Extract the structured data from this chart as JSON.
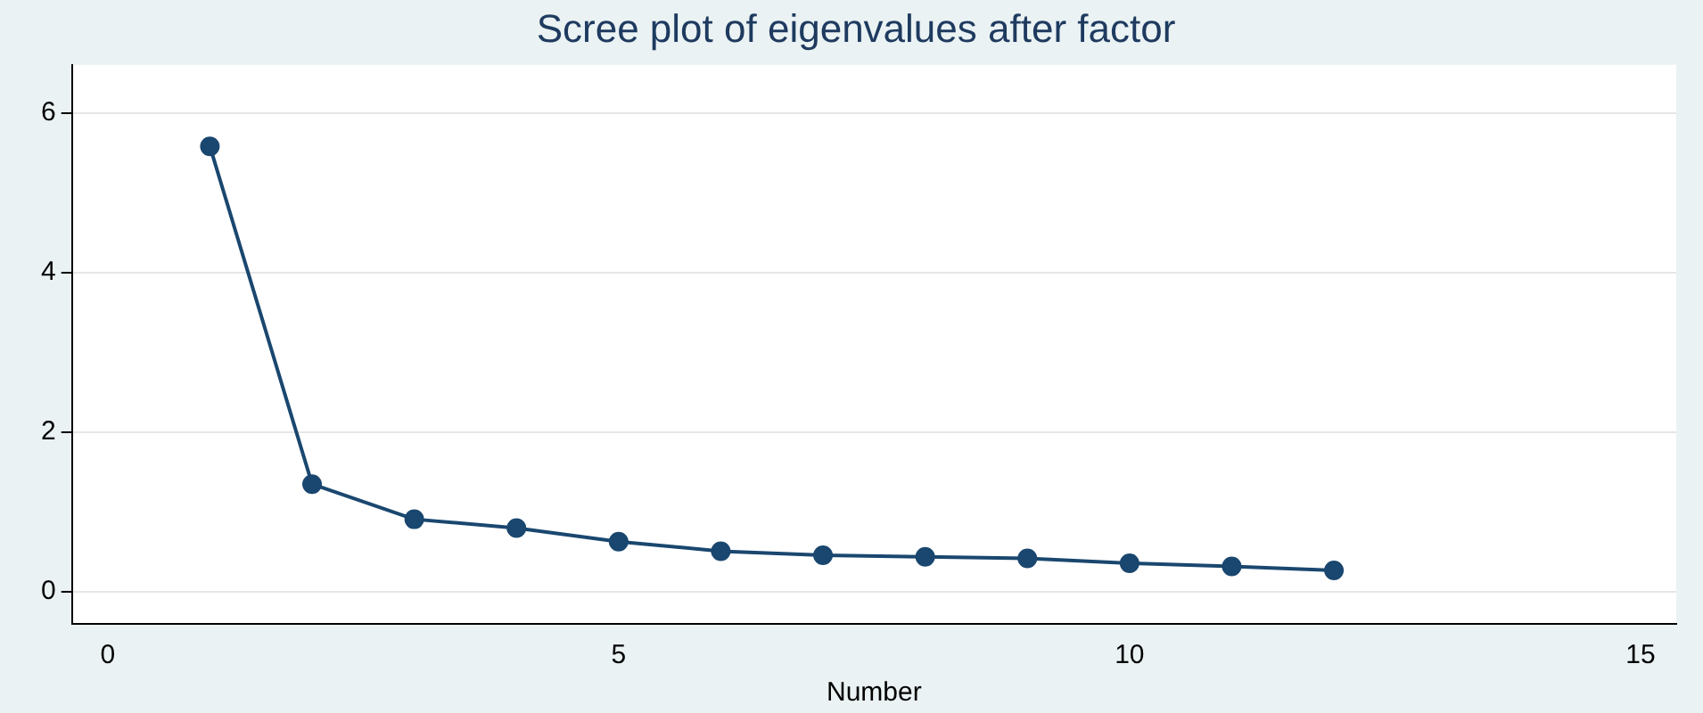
{
  "chart_data": {
    "type": "line",
    "title": "Scree plot of eigenvalues after factor",
    "xlabel": "Number",
    "x": [
      1,
      2,
      3,
      4,
      5,
      6,
      7,
      8,
      9,
      10,
      11,
      12
    ],
    "series": [
      {
        "color": "#1a476f",
        "values": [
          5.58,
          1.35,
          0.91,
          0.8,
          0.63,
          0.51,
          0.46,
          0.44,
          0.42,
          0.36,
          0.32,
          0.27
        ]
      }
    ],
    "xlim": [
      -0.35,
      15.35
    ],
    "xticks": [
      0,
      5,
      10,
      15
    ],
    "ylim": [
      -0.4,
      6.6
    ],
    "yticks": [
      0,
      2,
      4,
      6
    ],
    "grid": "y",
    "legend": false,
    "marker": "circle",
    "line_style": "solid"
  }
}
